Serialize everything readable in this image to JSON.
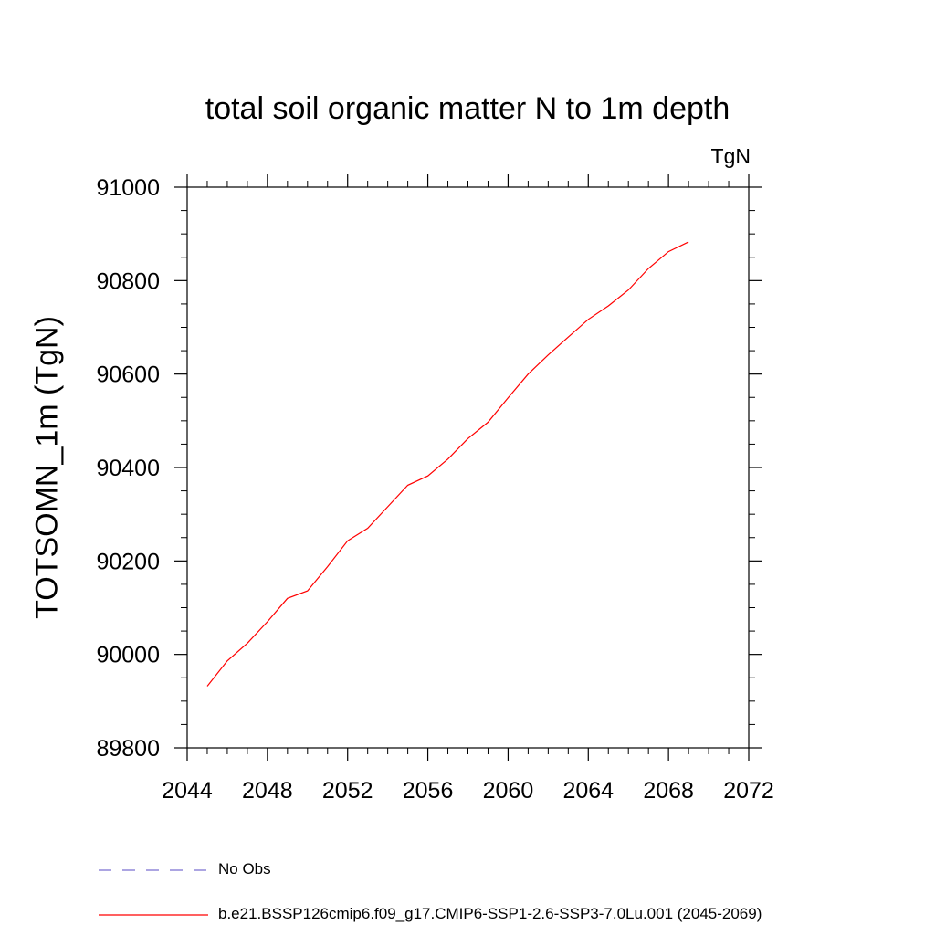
{
  "chart_data": {
    "type": "line",
    "title": "total soil organic matter N to 1m depth",
    "units": "TgN",
    "ylabel": "TOTSOMN_1m  (TgN)",
    "xlabel": "",
    "xlim": [
      2044,
      2072
    ],
    "ylim": [
      89800,
      91000
    ],
    "xticks": [
      2044,
      2048,
      2052,
      2056,
      2060,
      2064,
      2068,
      2072
    ],
    "yticks": [
      89800,
      90000,
      90200,
      90400,
      90600,
      90800,
      91000
    ],
    "series": [
      {
        "name": "b.e21.BSSP126cmip6.f09_g17.CMIP6-SSP1-2.6-SSP3-7.0Lu.001 (2045-2069)",
        "color": "#ff0000",
        "x": [
          2045,
          2046,
          2047,
          2048,
          2049,
          2050,
          2051,
          2052,
          2053,
          2054,
          2055,
          2056,
          2057,
          2058,
          2059,
          2060,
          2061,
          2062,
          2063,
          2064,
          2065,
          2066,
          2067,
          2068,
          2069
        ],
        "y": [
          89932,
          89986,
          90024,
          90070,
          90120,
          90136,
          90188,
          90243,
          90270,
          90316,
          90362,
          90382,
          90418,
          90462,
          90497,
          90549,
          90600,
          90641,
          90679,
          90717,
          90746,
          90780,
          90826,
          90862,
          90883
        ]
      }
    ],
    "legend": [
      {
        "label": "No Obs",
        "color": "#7a6fd0",
        "style": "dashed"
      },
      {
        "label": "b.e21.BSSP126cmip6.f09_g17.CMIP6-SSP1-2.6-SSP3-7.0Lu.001 (2045-2069)",
        "color": "#ff0000",
        "style": "solid"
      }
    ],
    "legend_position": "bottom",
    "grid": false
  }
}
